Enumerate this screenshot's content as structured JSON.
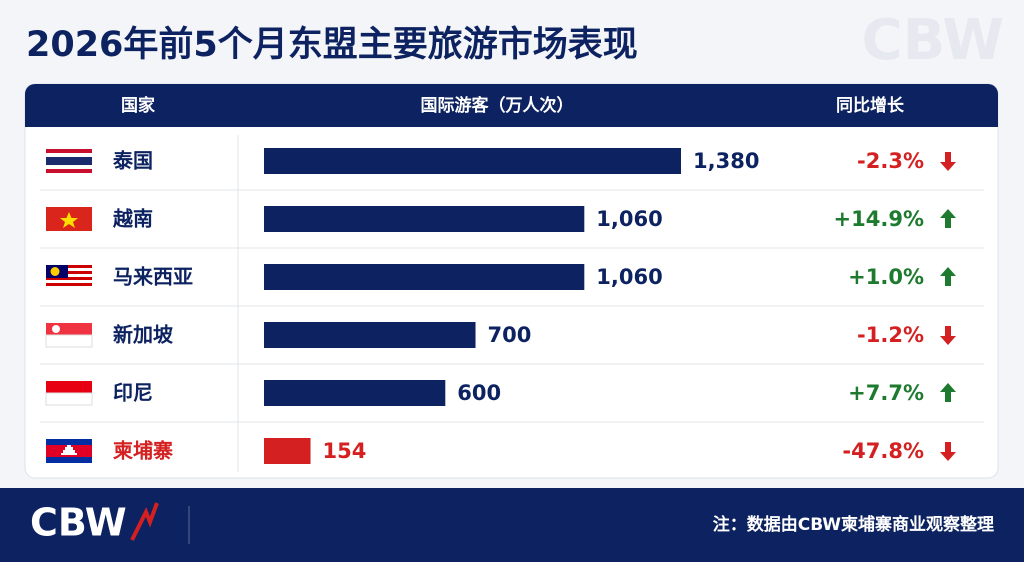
{
  "title": "2026年前5个月东盟主要旅游市场表现",
  "watermark": "CBW",
  "chart_data": {
    "type": "bar",
    "orientation": "horizontal",
    "headers": [
      "国家",
      "国际游客（万人次）",
      "同比增长"
    ],
    "categories": [
      "泰国",
      "越南",
      "马来西亚",
      "新加坡",
      "印尼",
      "柬埔寨"
    ],
    "values": [
      1380,
      1060,
      1060,
      700,
      600,
      154
    ],
    "value_labels": [
      "1,380",
      "1,060",
      "1,060",
      "700",
      "600",
      "154"
    ],
    "colors": [
      "#0d2260",
      "#0d2260",
      "#0d2260",
      "#0d2260",
      "#0d2260",
      "#d42020"
    ],
    "change": [
      -2.3,
      14.9,
      1.0,
      -1.2,
      7.7,
      -47.8
    ],
    "change_labels": [
      "-2.3%",
      "+14.9%",
      "+1.0%",
      "-1.2%",
      "+7.7%",
      "-47.8%"
    ],
    "up_color": "#1e7a2e",
    "down_color": "#d42020"
  },
  "footer": {
    "logo": "CBW",
    "note": "注：数据由CBW柬埔寨商业观察整理"
  }
}
